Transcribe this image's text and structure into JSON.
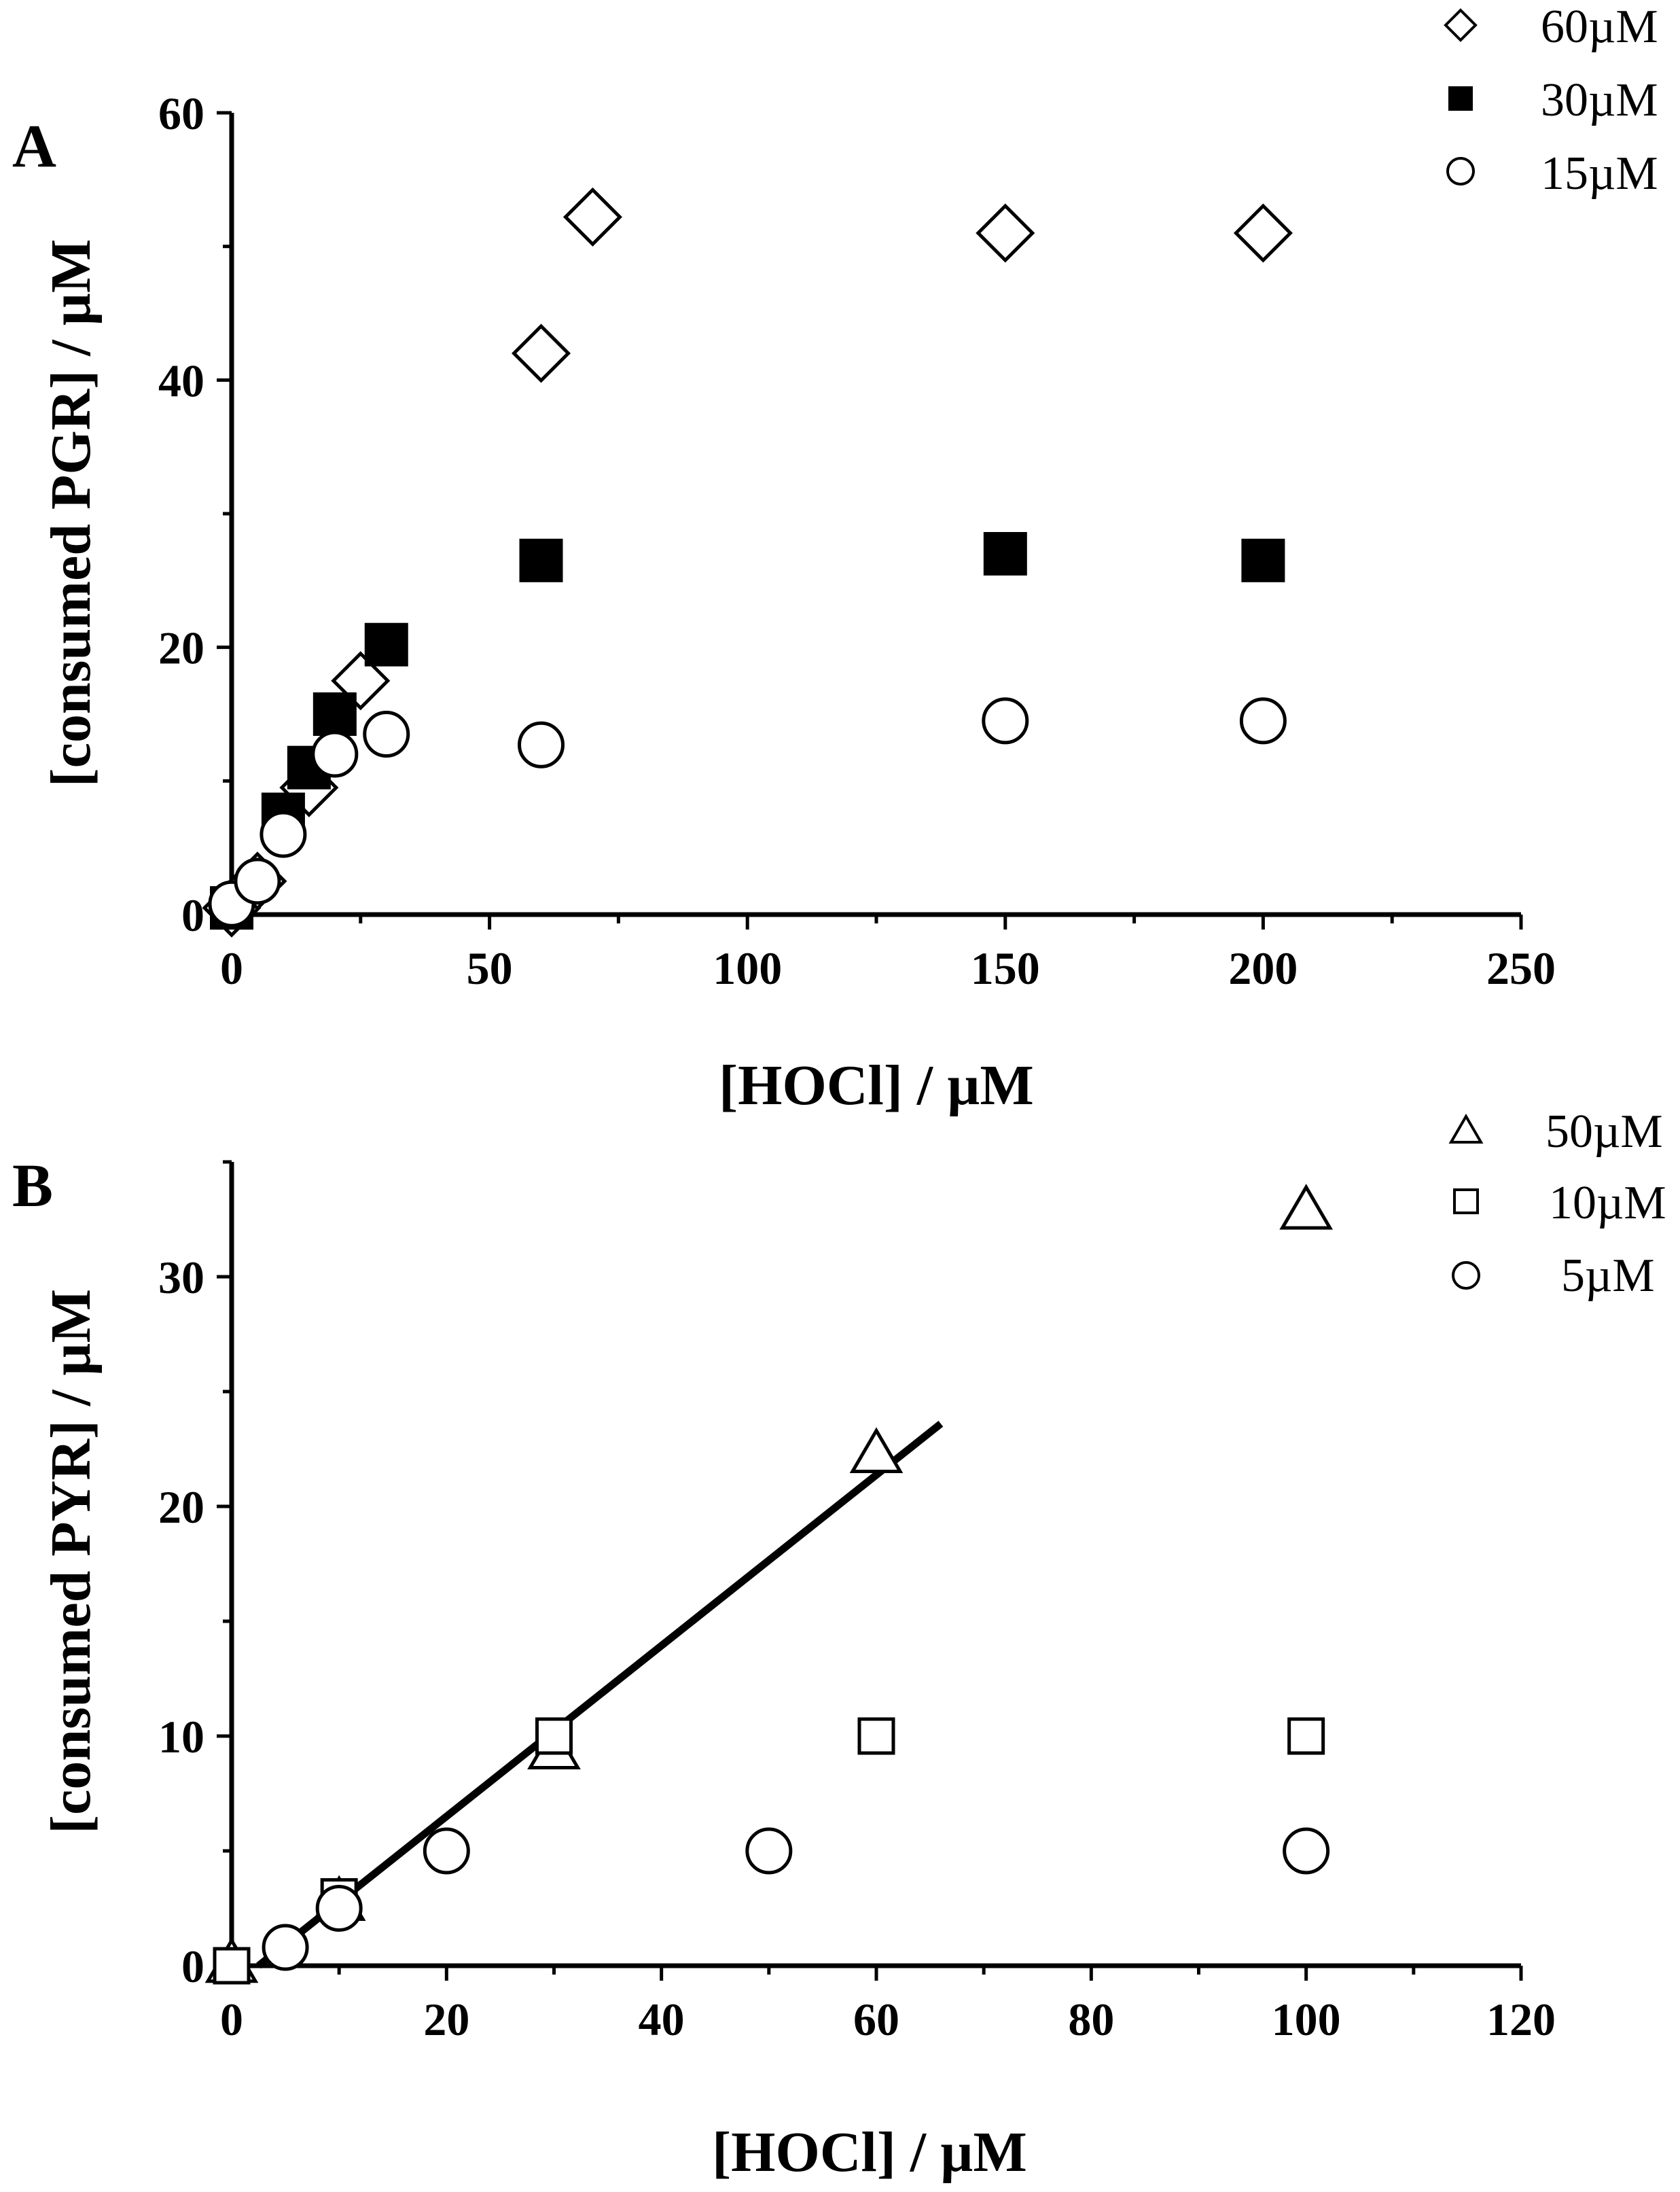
{
  "chart_data": [
    {
      "panel": "A",
      "type": "scatter",
      "xlabel": "[HOCl] / µM",
      "ylabel": "[consumed PGR] / µM",
      "xlim": [
        0,
        250
      ],
      "ylim": [
        0,
        60
      ],
      "xticks": [
        0,
        50,
        100,
        150,
        200,
        250
      ],
      "yticks": [
        0,
        20,
        40,
        60
      ],
      "legend_position": "top-right",
      "series": [
        {
          "name": "60µM",
          "marker": "diamond-open",
          "x": [
            0,
            5,
            15,
            25,
            60,
            70,
            150,
            200
          ],
          "y": [
            0.5,
            2.5,
            9.5,
            17.5,
            42,
            52.2,
            51,
            51
          ]
        },
        {
          "name": "30µM",
          "marker": "square-filled",
          "x": [
            0,
            10,
            15,
            20,
            30,
            60,
            150,
            200
          ],
          "y": [
            0.5,
            7.5,
            11,
            15,
            20.2,
            26.5,
            27,
            26.5
          ]
        },
        {
          "name": "15µM",
          "marker": "circle-open",
          "x": [
            0,
            5,
            10,
            20,
            30,
            60,
            150,
            200
          ],
          "y": [
            0.8,
            2.5,
            6,
            12,
            13.5,
            12.7,
            14.5,
            14.5
          ]
        }
      ]
    },
    {
      "panel": "B",
      "type": "scatter",
      "xlabel": "[HOCl] / µM",
      "ylabel": "[consumed PYR] / µM",
      "xlim": [
        0,
        120
      ],
      "ylim": [
        0,
        35
      ],
      "xticks": [
        0,
        20,
        40,
        60,
        80,
        100,
        120
      ],
      "yticks": [
        0,
        10,
        20,
        30
      ],
      "legend_position": "top-right",
      "series": [
        {
          "name": "50µM",
          "marker": "triangle-open",
          "x": [
            0,
            10,
            30,
            60,
            100
          ],
          "y": [
            0,
            2.7,
            9.3,
            22.2,
            32.8
          ]
        },
        {
          "name": "10µM",
          "marker": "square-open",
          "x": [
            0,
            10,
            30,
            60,
            100
          ],
          "y": [
            0,
            3,
            10,
            10,
            10
          ]
        },
        {
          "name": "5µM",
          "marker": "circle-open",
          "x": [
            5,
            10,
            20,
            50,
            100
          ],
          "y": [
            0.8,
            2.5,
            5,
            5,
            5
          ]
        }
      ],
      "fit_line": {
        "x": [
          2.5,
          66
        ],
        "y": [
          0,
          23.6
        ]
      }
    }
  ]
}
